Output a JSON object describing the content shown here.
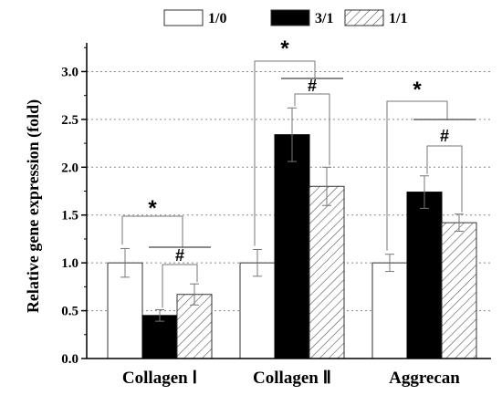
{
  "chart_data": {
    "type": "bar",
    "ylabel": "Relative gene expression (fold)",
    "xlabel": "",
    "ylim": [
      0,
      3.3
    ],
    "yticks": [
      "0.0",
      "0.5",
      "1.0",
      "1.5",
      "2.0",
      "2.5",
      "3.0"
    ],
    "grid": "dotted horizontal",
    "legend_position": "top-center",
    "categories": [
      "Collagen Ⅰ",
      "Collagen Ⅱ",
      "Aggrecan"
    ],
    "series": [
      {
        "name": "1/0",
        "style": "white",
        "values": [
          1.0,
          1.0,
          1.0
        ],
        "errors": [
          0.15,
          0.14,
          0.09
        ]
      },
      {
        "name": "3/1",
        "style": "black",
        "values": [
          0.45,
          2.34,
          1.74
        ],
        "errors": [
          0.06,
          0.28,
          0.17
        ]
      },
      {
        "name": "1/1",
        "style": "hatched",
        "values": [
          0.67,
          1.8,
          1.42
        ],
        "errors": [
          0.11,
          0.2,
          0.09
        ]
      }
    ],
    "annotations": [
      {
        "category": 0,
        "comparison": "1/0 vs 3/1, 1/1",
        "symbol": "*"
      },
      {
        "category": 0,
        "comparison": "3/1 vs 1/1",
        "symbol": "#"
      },
      {
        "category": 1,
        "comparison": "1/0 vs 3/1, 1/1",
        "symbol": "*"
      },
      {
        "category": 1,
        "comparison": "3/1 vs 1/1",
        "symbol": "#"
      },
      {
        "category": 2,
        "comparison": "1/0 vs 3/1, 1/1",
        "symbol": "*"
      },
      {
        "category": 2,
        "comparison": "3/1 vs 1/1",
        "symbol": "#"
      }
    ],
    "colors": {
      "white": "#ffffff",
      "black": "#000000",
      "hatch": "#555555",
      "grid": "#888888"
    }
  }
}
